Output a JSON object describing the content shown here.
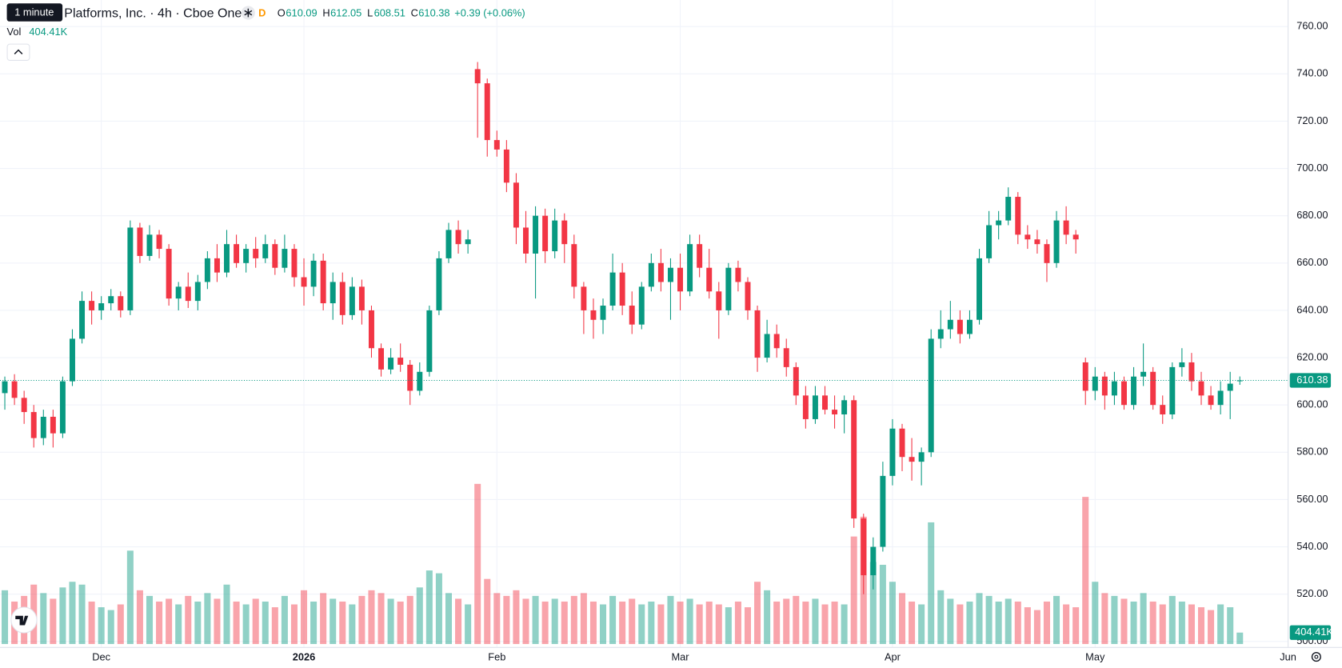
{
  "chart_data": {
    "type": "candlestick",
    "header": {
      "tooltip": "1 minute",
      "title": "Platforms, Inc. · 4h · Cboe One",
      "badge": "D",
      "ohlc_labels": [
        "O",
        "H",
        "L",
        "C"
      ],
      "change": "+0.39 (+0.06%)",
      "volume_title": "Vol"
    },
    "up_color": "#089981",
    "down_color": "#f23645",
    "open": [
      605,
      610,
      603,
      597,
      586,
      595,
      588,
      610,
      628,
      644,
      640,
      643,
      646,
      640,
      675,
      663,
      672,
      666,
      645,
      650,
      644,
      652,
      662,
      656,
      668,
      660,
      666,
      662,
      668,
      658,
      666,
      654,
      650,
      661,
      643,
      652,
      638,
      650,
      640,
      624,
      615,
      620,
      617,
      606,
      614,
      640,
      662,
      674,
      668,
      742,
      736,
      712,
      708,
      694,
      675,
      664,
      680,
      665,
      678,
      668,
      650,
      640,
      636,
      642,
      656,
      642,
      634,
      650,
      660,
      652,
      658,
      648,
      668,
      658,
      648,
      640,
      658,
      652,
      640,
      620,
      630,
      624,
      616,
      604,
      594,
      604,
      598,
      596,
      602,
      552,
      528,
      540,
      570,
      590,
      578,
      576,
      580,
      628,
      632,
      636,
      630,
      636,
      662,
      676,
      678,
      688,
      672,
      670,
      668,
      660,
      678,
      672,
      618,
      606,
      612,
      604,
      610,
      600,
      612,
      614,
      600,
      596,
      616,
      618,
      610,
      604,
      600,
      606,
      610.09
    ],
    "high": [
      612,
      613,
      606,
      600,
      598,
      598,
      612,
      632,
      648,
      648,
      646,
      649,
      648,
      678,
      677,
      676,
      674,
      668,
      652,
      656,
      655,
      665,
      668,
      674,
      672,
      668,
      671,
      672,
      670,
      672,
      668,
      662,
      664,
      664,
      656,
      656,
      654,
      653,
      642,
      626,
      624,
      626,
      619,
      618,
      642,
      665,
      677,
      678,
      674,
      745,
      738,
      716,
      712,
      698,
      682,
      684,
      683,
      683,
      681,
      672,
      652,
      645,
      645,
      664,
      660,
      648,
      652,
      664,
      666,
      662,
      664,
      672,
      672,
      666,
      652,
      660,
      661,
      654,
      642,
      636,
      634,
      628,
      618,
      608,
      608,
      608,
      604,
      604,
      604,
      554,
      544,
      576,
      594,
      592,
      586,
      582,
      632,
      640,
      644,
      640,
      640,
      666,
      682,
      682,
      692,
      690,
      676,
      674,
      670,
      682,
      684,
      674,
      620,
      616,
      614,
      614,
      612,
      616,
      626,
      616,
      604,
      618,
      624,
      622,
      614,
      608,
      610,
      614,
      612.05
    ],
    "low": [
      598,
      600,
      592,
      582,
      583,
      582,
      586,
      608,
      626,
      634,
      636,
      640,
      637,
      638,
      660,
      661,
      662,
      642,
      640,
      641,
      640,
      649,
      652,
      654,
      658,
      656,
      658,
      660,
      655,
      656,
      650,
      642,
      646,
      640,
      636,
      634,
      636,
      634,
      620,
      612,
      613,
      614,
      600,
      604,
      612,
      638,
      660,
      664,
      664,
      713,
      705,
      705,
      690,
      668,
      660,
      645,
      660,
      662,
      660,
      645,
      630,
      628,
      630,
      640,
      638,
      630,
      632,
      648,
      648,
      636,
      640,
      646,
      654,
      645,
      628,
      638,
      648,
      636,
      614,
      618,
      620,
      612,
      600,
      590,
      592,
      596,
      590,
      588,
      548,
      520,
      522,
      538,
      566,
      572,
      568,
      566,
      578,
      624,
      628,
      626,
      628,
      634,
      660,
      670,
      676,
      668,
      666,
      664,
      652,
      658,
      668,
      664,
      600,
      602,
      598,
      600,
      598,
      598,
      608,
      598,
      592,
      594,
      612,
      606,
      600,
      598,
      596,
      594,
      608.51
    ],
    "close": [
      610,
      603,
      597,
      586,
      595,
      588,
      610,
      628,
      644,
      640,
      643,
      646,
      640,
      675,
      663,
      672,
      666,
      645,
      650,
      644,
      652,
      662,
      656,
      668,
      660,
      666,
      662,
      668,
      658,
      666,
      654,
      650,
      661,
      643,
      652,
      638,
      650,
      640,
      624,
      615,
      620,
      617,
      606,
      614,
      640,
      662,
      674,
      668,
      670,
      736,
      712,
      708,
      694,
      675,
      664,
      680,
      665,
      678,
      668,
      650,
      640,
      636,
      642,
      656,
      642,
      634,
      650,
      660,
      652,
      658,
      648,
      668,
      658,
      648,
      640,
      658,
      652,
      640,
      620,
      630,
      624,
      616,
      604,
      594,
      604,
      598,
      596,
      602,
      552,
      528,
      540,
      570,
      590,
      578,
      576,
      580,
      628,
      632,
      636,
      630,
      636,
      662,
      676,
      678,
      688,
      672,
      670,
      668,
      660,
      678,
      672,
      670,
      606,
      612,
      604,
      610,
      600,
      612,
      614,
      600,
      596,
      616,
      618,
      610,
      604,
      600,
      606,
      609,
      610.38
    ],
    "volume": [
      1900,
      1500,
      1700,
      2100,
      1800,
      1600,
      2000,
      2200,
      2100,
      1500,
      1300,
      1200,
      1400,
      3300,
      1900,
      1700,
      1500,
      1600,
      1400,
      1700,
      1500,
      1800,
      1600,
      2100,
      1500,
      1400,
      1600,
      1500,
      1300,
      1700,
      1400,
      1900,
      1500,
      1800,
      1600,
      1500,
      1400,
      1700,
      1900,
      1800,
      1600,
      1500,
      1700,
      2000,
      2600,
      2500,
      1800,
      1600,
      1400,
      5660,
      2300,
      1800,
      1700,
      1900,
      1600,
      1700,
      1500,
      1600,
      1500,
      1700,
      1800,
      1500,
      1400,
      1700,
      1500,
      1600,
      1400,
      1500,
      1400,
      1700,
      1500,
      1600,
      1400,
      1500,
      1400,
      1300,
      1500,
      1300,
      2200,
      1900,
      1500,
      1600,
      1700,
      1500,
      1600,
      1400,
      1500,
      1400,
      3800,
      4500,
      2900,
      2800,
      2200,
      1800,
      1500,
      1400,
      4300,
      1900,
      1600,
      1400,
      1500,
      1800,
      1700,
      1500,
      1600,
      1500,
      1300,
      1200,
      1500,
      1700,
      1400,
      1300,
      5200,
      2200,
      1800,
      1700,
      1600,
      1500,
      1800,
      1500,
      1400,
      1700,
      1500,
      1400,
      1300,
      1200,
      1400,
      1300,
      404.41
    ],
    "last_volume_label": "404.41K",
    "xlim": [
      -0.5,
      133
    ],
    "xticks": [
      {
        "value": 10,
        "label": "Dec"
      },
      {
        "value": 31,
        "label": "2026"
      },
      {
        "value": 51,
        "label": "Feb"
      },
      {
        "value": 70,
        "label": "Mar"
      },
      {
        "value": 92,
        "label": "Apr"
      },
      {
        "value": 113,
        "label": "May"
      },
      {
        "value": 133,
        "label": "Jun"
      }
    ],
    "ylim": [
      500,
      760
    ],
    "yticks": [
      {
        "value": 500,
        "label": "500.00"
      },
      {
        "value": 520,
        "label": "520.00"
      },
      {
        "value": 540,
        "label": "540.00"
      },
      {
        "value": 560,
        "label": "560.00"
      },
      {
        "value": 580,
        "label": "580.00"
      },
      {
        "value": 600,
        "label": "600.00"
      },
      {
        "value": 620,
        "label": "620.00"
      },
      {
        "value": 640,
        "label": "640.00"
      },
      {
        "value": 660,
        "label": "660.00"
      },
      {
        "value": 680,
        "label": "680.00"
      },
      {
        "value": 700,
        "label": "700.00"
      },
      {
        "value": 720,
        "label": "720.00"
      },
      {
        "value": 740,
        "label": "740.00"
      },
      {
        "value": 760,
        "label": "760.00"
      }
    ],
    "grid": true
  }
}
